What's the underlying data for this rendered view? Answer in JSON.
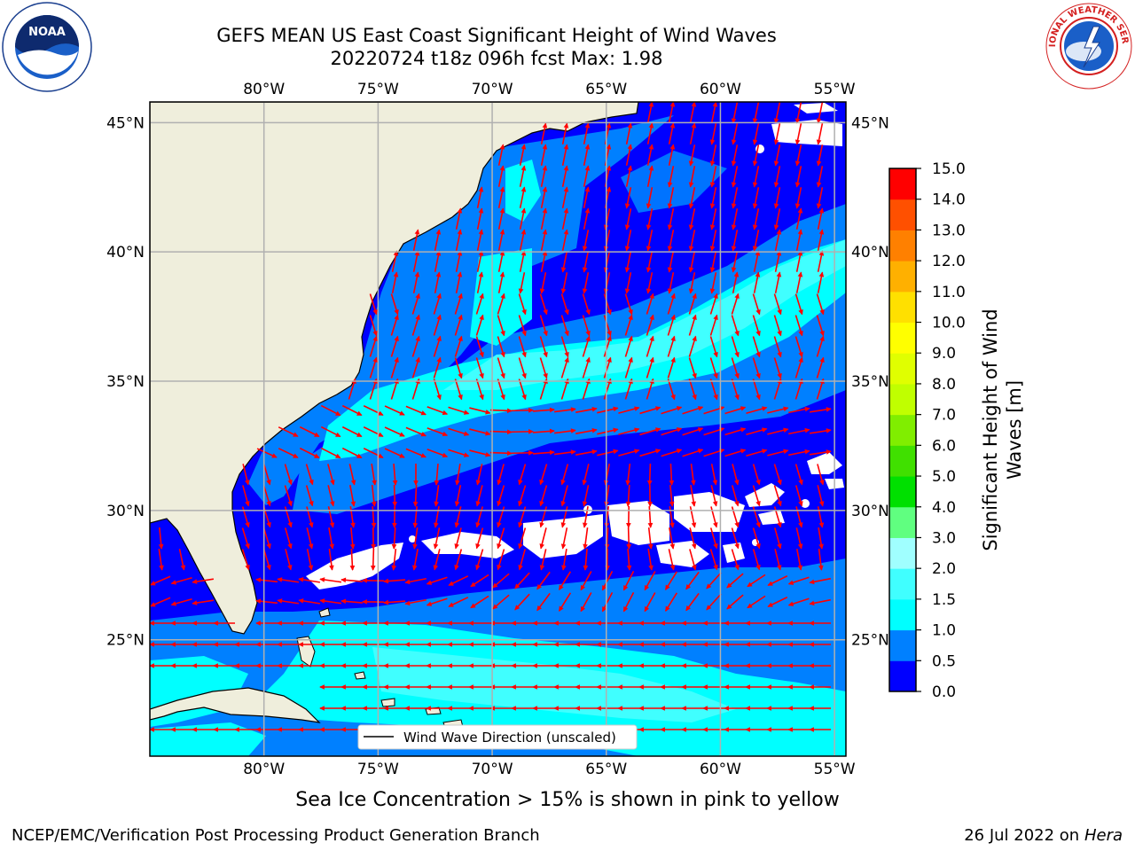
{
  "header": {
    "title_line1": "GEFS MEAN US East Coast Significant Height of Wind Waves",
    "title_line2": "20220724 t18z 096h fcst   Max: 1.98"
  },
  "logos": {
    "left": {
      "name": "NOAA",
      "ring_text": "NATIONAL OCEANIC AND ATMOSPHERIC ADMINISTRATION · U.S. DEPARTMENT OF COMMERCE"
    },
    "right": {
      "name": "NATIONAL WEATHER SERVICE"
    }
  },
  "map": {
    "lon_labels": [
      "80°W",
      "75°W",
      "70°W",
      "65°W",
      "60°W",
      "55°W"
    ],
    "lon_values": [
      -80,
      -75,
      -70,
      -65,
      -60,
      -55
    ],
    "lat_labels": [
      "45°N",
      "40°N",
      "35°N",
      "30°N",
      "25°N"
    ],
    "lat_values": [
      45,
      40,
      35,
      30,
      25
    ],
    "lon_range": [
      -85,
      -54.5
    ],
    "lat_range": [
      20.5,
      45.8
    ],
    "legend_label": "Wind Wave Direction (unscaled)",
    "arrow_color": "#ff0000",
    "land_color": "#efeedc",
    "missing_color": "#ffffff"
  },
  "colorbar": {
    "label_line1": "Significant Height of Wind",
    "label_line2": "Waves [m]",
    "ticks": [
      "0.0",
      "0.5",
      "1.0",
      "1.5",
      "2.0",
      "3.0",
      "4.0",
      "5.0",
      "6.0",
      "7.0",
      "8.0",
      "9.0",
      "10.0",
      "11.0",
      "12.0",
      "13.0",
      "14.0",
      "15.0"
    ],
    "colors": [
      "#0000ff",
      "#0080ff",
      "#00ffff",
      "#40ffff",
      "#a0ffff",
      "#60ff80",
      "#00e000",
      "#40e000",
      "#80ee00",
      "#c0ff00",
      "#e0ff00",
      "#ffff00",
      "#ffe000",
      "#ffb000",
      "#ff8000",
      "#ff5000",
      "#ff0000"
    ]
  },
  "wave_classes": {
    "0.0-0.5": "#0000ff",
    "0.5-1.0": "#0080ff",
    "1.0-1.5": "#00ffff",
    "1.5-2.0": "#40ffff"
  },
  "ice_note": "Sea Ice Concentration > 15% is shown in pink to yellow",
  "footer": {
    "left": "NCEP/EMC/Verification Post Processing Product Generation Branch",
    "right_date": "26 Jul 2022 on",
    "right_host": "Hera"
  }
}
